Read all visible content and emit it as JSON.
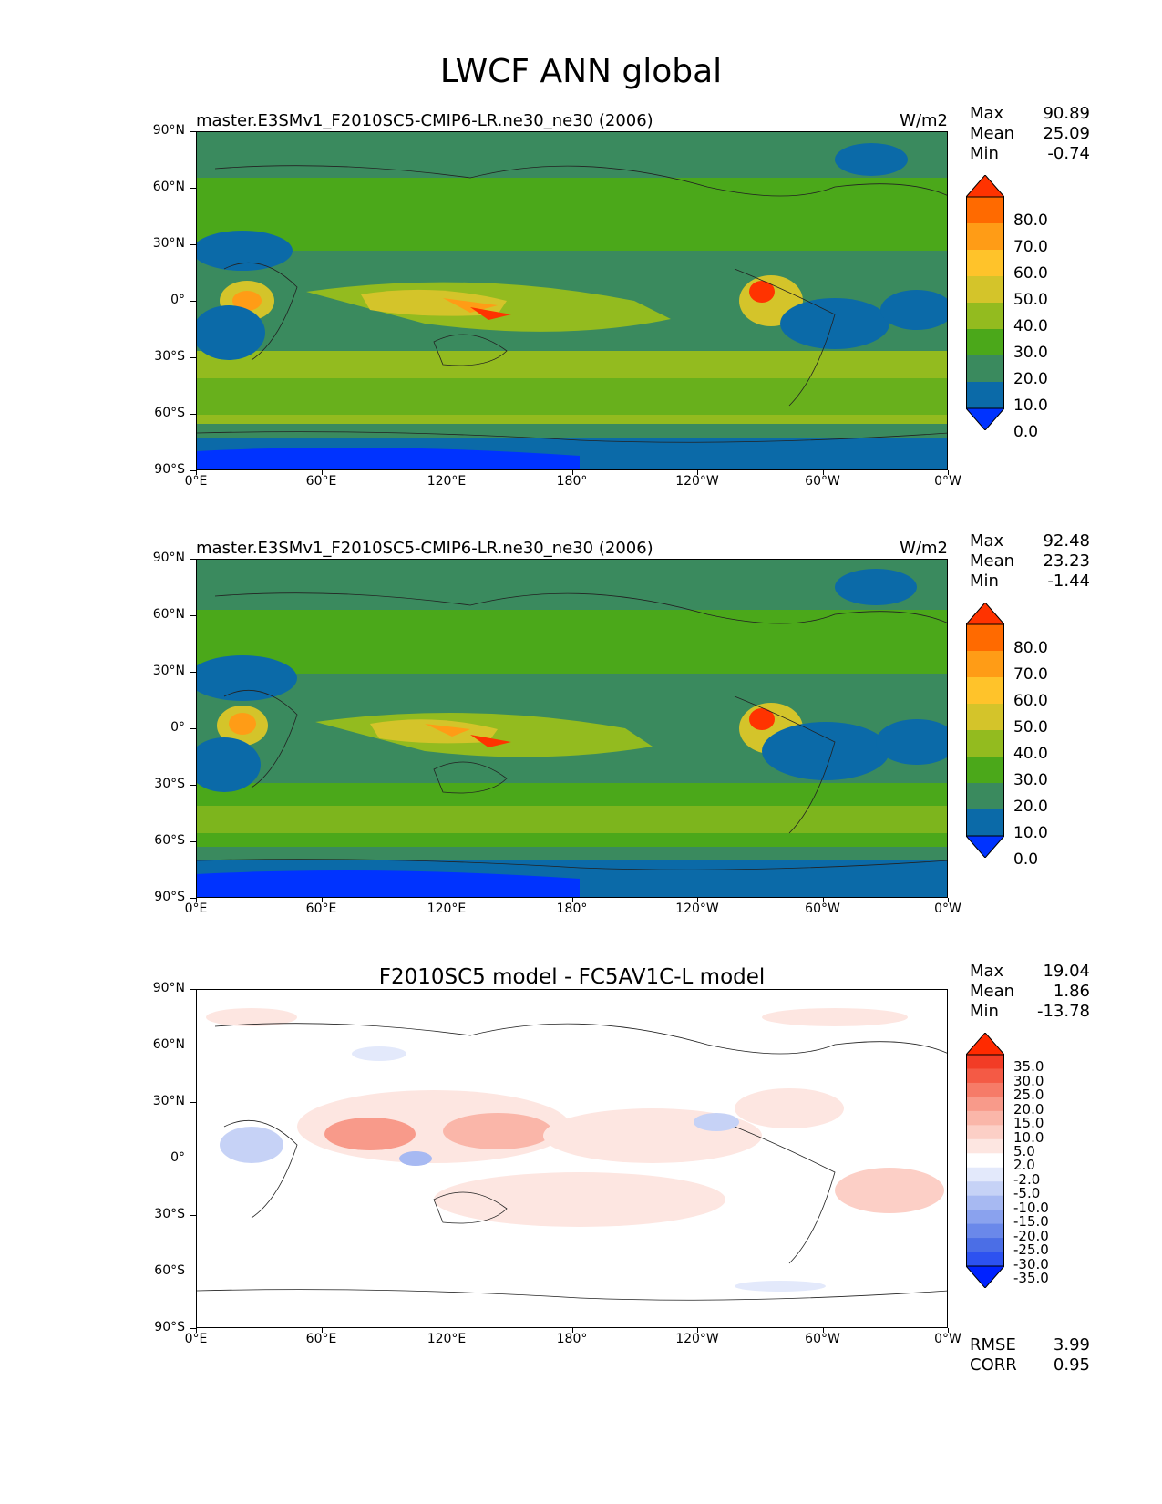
{
  "title": "LWCF ANN global",
  "axes": {
    "lat_labels": [
      "90°N",
      "60°N",
      "30°N",
      "0°",
      "30°S",
      "60°S",
      "90°S"
    ],
    "lon_labels": [
      "0°E",
      "60°E",
      "120°E",
      "180°",
      "120°W",
      "60°W",
      "0°W"
    ]
  },
  "panels": [
    {
      "title": "master.E3SMv1_F2010SC5-CMIP6-LR.ne30_ne30 (2006)",
      "units": "W/m2",
      "stats": [
        {
          "label": "Max",
          "value": "90.89"
        },
        {
          "label": "Mean",
          "value": "25.09"
        },
        {
          "label": "Min",
          "value": "-0.74"
        }
      ],
      "colorbar": {
        "labels": [
          "80.0",
          "70.0",
          "60.0",
          "50.0",
          "40.0",
          "30.0",
          "20.0",
          "10.0",
          "0.0"
        ],
        "colors": [
          "#ff3300",
          "#ff6a00",
          "#ff9c16",
          "#ffc32a",
          "#d4c42a",
          "#93bb1f",
          "#4ba81a",
          "#3a8a5e",
          "#0b6aa8",
          "#0033ff"
        ]
      }
    },
    {
      "title": "master.E3SMv1_F2010SC5-CMIP6-LR.ne30_ne30 (2006)",
      "units": "W/m2",
      "stats": [
        {
          "label": "Max",
          "value": "92.48"
        },
        {
          "label": "Mean",
          "value": "23.23"
        },
        {
          "label": "Min",
          "value": "-1.44"
        }
      ],
      "colorbar": {
        "labels": [
          "80.0",
          "70.0",
          "60.0",
          "50.0",
          "40.0",
          "30.0",
          "20.0",
          "10.0",
          "0.0"
        ],
        "colors": [
          "#ff3300",
          "#ff6a00",
          "#ff9c16",
          "#ffc32a",
          "#d4c42a",
          "#93bb1f",
          "#4ba81a",
          "#3a8a5e",
          "#0b6aa8",
          "#0033ff"
        ]
      }
    },
    {
      "title": "F2010SC5 model - FC5AV1C-L model",
      "units": "",
      "stats": [
        {
          "label": "Max",
          "value": "19.04"
        },
        {
          "label": "Mean",
          "value": "1.86"
        },
        {
          "label": "Min",
          "value": "-13.78"
        }
      ],
      "colorbar": {
        "labels": [
          "35.0",
          "30.0",
          "25.0",
          "20.0",
          "15.0",
          "10.0",
          "5.0",
          "2.0",
          "-2.0",
          "-5.0",
          "-10.0",
          "-15.0",
          "-20.0",
          "-25.0",
          "-30.0",
          "-35.0"
        ],
        "colors": [
          "#ff2a00",
          "#f23c26",
          "#f45a45",
          "#f67b68",
          "#f89a8a",
          "#fab6a9",
          "#fccfc6",
          "#fde6e1",
          "#ffffff",
          "#e3e9fb",
          "#c6d2f6",
          "#a7b9f2",
          "#8aa2ee",
          "#6a88ea",
          "#4b6ee6",
          "#2d52f0",
          "#0022ff"
        ]
      },
      "extra_stats": [
        {
          "label": "RMSE",
          "value": "3.99"
        },
        {
          "label": "CORR",
          "value": "0.95"
        }
      ]
    }
  ]
}
